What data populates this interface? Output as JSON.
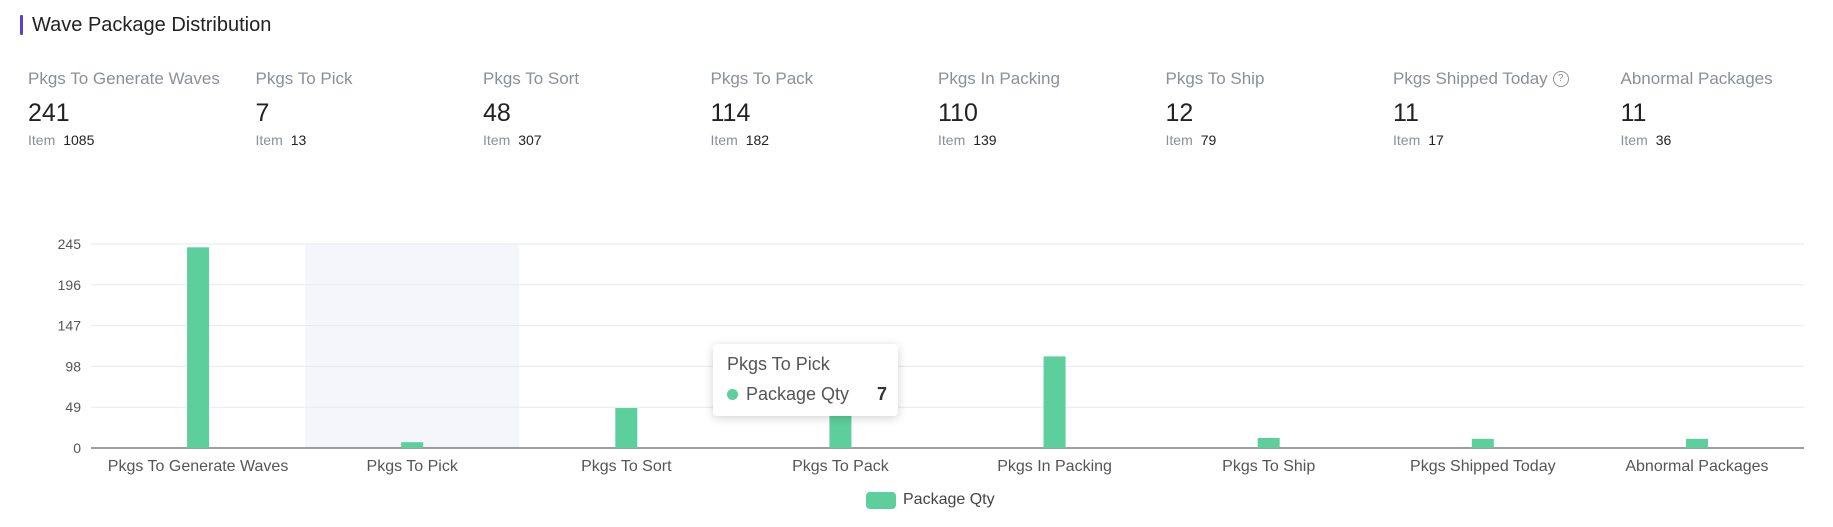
{
  "header": {
    "title": "Wave Package Distribution"
  },
  "stats": [
    {
      "label": "Pkgs To Generate Waves",
      "value": "241",
      "item_label": "Item",
      "item_value": "1085",
      "help": false
    },
    {
      "label": "Pkgs To Pick",
      "value": "7",
      "item_label": "Item",
      "item_value": "13",
      "help": false
    },
    {
      "label": "Pkgs To Sort",
      "value": "48",
      "item_label": "Item",
      "item_value": "307",
      "help": false
    },
    {
      "label": "Pkgs To Pack",
      "value": "114",
      "item_label": "Item",
      "item_value": "182",
      "help": false
    },
    {
      "label": "Pkgs In Packing",
      "value": "110",
      "item_label": "Item",
      "item_value": "139",
      "help": false
    },
    {
      "label": "Pkgs To Ship",
      "value": "12",
      "item_label": "Item",
      "item_value": "79",
      "help": false
    },
    {
      "label": "Pkgs Shipped Today",
      "value": "11",
      "item_label": "Item",
      "item_value": "17",
      "help": true,
      "help_glyph": "?"
    },
    {
      "label": "Abnormal Packages",
      "value": "11",
      "item_label": "Item",
      "item_value": "36",
      "help": false
    }
  ],
  "chart_data": {
    "type": "bar",
    "categories": [
      "Pkgs To Generate Waves",
      "Pkgs To Pick",
      "Pkgs To Sort",
      "Pkgs To Pack",
      "Pkgs In Packing",
      "Pkgs To Ship",
      "Pkgs Shipped Today",
      "Abnormal Packages"
    ],
    "series": [
      {
        "name": "Package Qty",
        "values": [
          241,
          7,
          48,
          114,
          110,
          12,
          11,
          11
        ]
      }
    ],
    "yticks": [
      "0",
      "49",
      "98",
      "147",
      "196",
      "245"
    ],
    "ylim": [
      0,
      245
    ],
    "grid": true,
    "legend": "bottom-center",
    "highlighted_category_index": 1,
    "bar_color": "#5ccf9c",
    "highlight_color": "#f4f6fb",
    "tooltip": {
      "title": "Pkgs To Pick",
      "series_name": "Package Qty",
      "value": "7"
    }
  }
}
